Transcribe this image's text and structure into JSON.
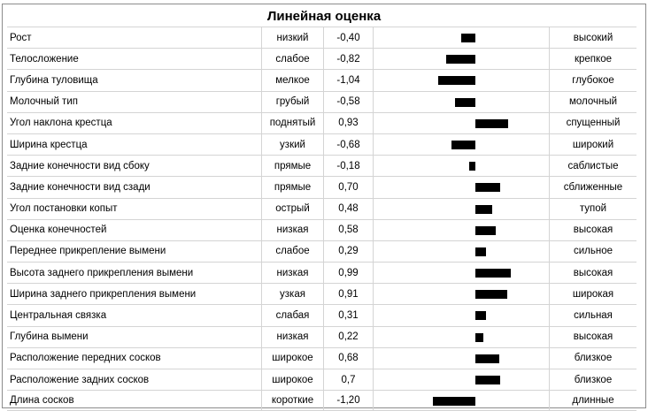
{
  "chart_data": {
    "type": "bar",
    "title": "Линейная оценка",
    "orientation": "horizontal",
    "xlim": [
      -1.5,
      1.5
    ],
    "rows": [
      {
        "trait": "Рост",
        "low": "низкий",
        "value": -0.4,
        "value_label": "-0,40",
        "high": "высокий"
      },
      {
        "trait": "Телосложение",
        "low": "слабое",
        "value": -0.82,
        "value_label": "-0,82",
        "high": "крепкое"
      },
      {
        "trait": "Глубина туловища",
        "low": "мелкое",
        "value": -1.04,
        "value_label": "-1,04",
        "high": "глубокое"
      },
      {
        "trait": "Молочный тип",
        "low": "грубый",
        "value": -0.58,
        "value_label": "-0,58",
        "high": "молочный"
      },
      {
        "trait": "Угол наклона крестца",
        "low": "поднятый",
        "value": 0.93,
        "value_label": "0,93",
        "high": "спущенный"
      },
      {
        "trait": "Ширина крестца",
        "low": "узкий",
        "value": -0.68,
        "value_label": "-0,68",
        "high": "широкий"
      },
      {
        "trait": "Задние конечности вид сбоку",
        "low": "прямые",
        "value": -0.18,
        "value_label": "-0,18",
        "high": "саблистые"
      },
      {
        "trait": "Задние конечности вид сзади",
        "low": "прямые",
        "value": 0.7,
        "value_label": "0,70",
        "high": "сближенные"
      },
      {
        "trait": "Угол постановки копыт",
        "low": "острый",
        "value": 0.48,
        "value_label": "0,48",
        "high": "тупой"
      },
      {
        "trait": "Оценка конечностей",
        "low": "низкая",
        "value": 0.58,
        "value_label": "0,58",
        "high": "высокая"
      },
      {
        "trait": "Переднее прикрепление вымени",
        "low": "слабое",
        "value": 0.29,
        "value_label": "0,29",
        "high": "сильное"
      },
      {
        "trait": "Высота заднего прикрепления вымени",
        "low": "низкая",
        "value": 0.99,
        "value_label": "0,99",
        "high": "высокая"
      },
      {
        "trait": "Ширина заднего прикрепления вымени",
        "low": "узкая",
        "value": 0.91,
        "value_label": "0,91",
        "high": "широкая"
      },
      {
        "trait": "Центральная связка",
        "low": "слабая",
        "value": 0.31,
        "value_label": "0,31",
        "high": "сильная"
      },
      {
        "trait": "Глубина вымени",
        "low": "низкая",
        "value": 0.22,
        "value_label": "0,22",
        "high": "высокая"
      },
      {
        "trait": "Расположение передних сосков",
        "low": "широкое",
        "value": 0.68,
        "value_label": "0,68",
        "high": "близкое"
      },
      {
        "trait": "Расположение задних сосков",
        "low": "широкое",
        "value": 0.7,
        "value_label": "0,7",
        "high": "близкое"
      },
      {
        "trait": "Длина сосков",
        "low": "короткие",
        "value": -1.2,
        "value_label": "-1,20",
        "high": "длинные"
      }
    ],
    "colors": {
      "bar": "#000000",
      "grid": "#d4d4d4"
    }
  }
}
